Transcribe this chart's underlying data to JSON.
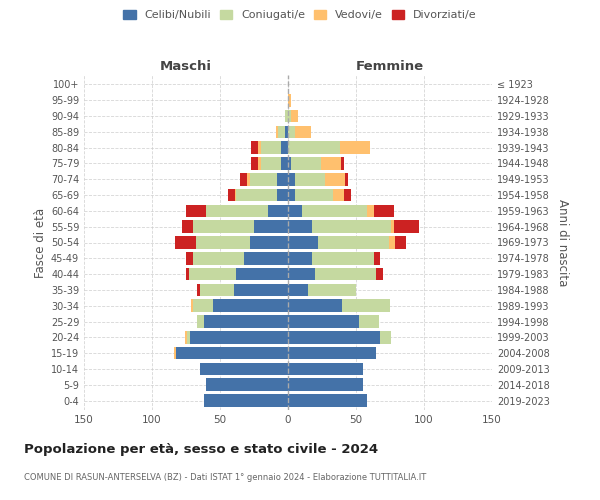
{
  "age_groups": [
    "0-4",
    "5-9",
    "10-14",
    "15-19",
    "20-24",
    "25-29",
    "30-34",
    "35-39",
    "40-44",
    "45-49",
    "50-54",
    "55-59",
    "60-64",
    "65-69",
    "70-74",
    "75-79",
    "80-84",
    "85-89",
    "90-94",
    "95-99",
    "100+"
  ],
  "birth_years": [
    "2019-2023",
    "2014-2018",
    "2009-2013",
    "2004-2008",
    "1999-2003",
    "1994-1998",
    "1989-1993",
    "1984-1988",
    "1979-1983",
    "1974-1978",
    "1969-1973",
    "1964-1968",
    "1959-1963",
    "1954-1958",
    "1949-1953",
    "1944-1948",
    "1939-1943",
    "1934-1938",
    "1929-1933",
    "1924-1928",
    "≤ 1923"
  ],
  "maschi": {
    "celibi": [
      62,
      60,
      65,
      82,
      72,
      62,
      55,
      40,
      38,
      32,
      28,
      25,
      15,
      8,
      8,
      5,
      5,
      2,
      0,
      0,
      0
    ],
    "coniugati": [
      0,
      0,
      0,
      0,
      2,
      5,
      15,
      25,
      35,
      38,
      40,
      45,
      45,
      30,
      20,
      15,
      15,
      5,
      2,
      0,
      0
    ],
    "vedovi": [
      0,
      0,
      0,
      2,
      2,
      0,
      1,
      0,
      0,
      0,
      0,
      0,
      0,
      1,
      2,
      2,
      2,
      2,
      0,
      0,
      0
    ],
    "divorziati": [
      0,
      0,
      0,
      0,
      0,
      0,
      0,
      2,
      2,
      5,
      15,
      8,
      15,
      5,
      5,
      5,
      5,
      0,
      0,
      0,
      0
    ]
  },
  "femmine": {
    "nubili": [
      58,
      55,
      55,
      65,
      68,
      52,
      40,
      15,
      20,
      18,
      22,
      18,
      10,
      5,
      5,
      2,
      0,
      0,
      0,
      0,
      0
    ],
    "coniugate": [
      0,
      0,
      0,
      0,
      8,
      15,
      35,
      35,
      45,
      45,
      52,
      58,
      48,
      28,
      22,
      22,
      38,
      5,
      2,
      0,
      0
    ],
    "vedove": [
      0,
      0,
      0,
      0,
      0,
      0,
      0,
      0,
      0,
      0,
      5,
      2,
      5,
      8,
      15,
      15,
      22,
      12,
      5,
      2,
      0
    ],
    "divorziate": [
      0,
      0,
      0,
      0,
      0,
      0,
      0,
      0,
      5,
      5,
      8,
      18,
      15,
      5,
      2,
      2,
      0,
      0,
      0,
      0,
      0
    ]
  },
  "colors": {
    "celibi": "#4472a8",
    "coniugati": "#c5d9a0",
    "vedovi": "#ffc06e",
    "divorziati": "#cc2222"
  },
  "xlim": 150,
  "title": "Popolazione per età, sesso e stato civile - 2024",
  "subtitle": "COMUNE DI RASUN-ANTERSELVA (BZ) - Dati ISTAT 1° gennaio 2024 - Elaborazione TUTTITALIA.IT",
  "ylabel_left": "Fasce di età",
  "ylabel_right": "Anni di nascita",
  "header_left": "Maschi",
  "header_right": "Femmine",
  "bg_color": "#ffffff",
  "grid_color": "#cccccc"
}
